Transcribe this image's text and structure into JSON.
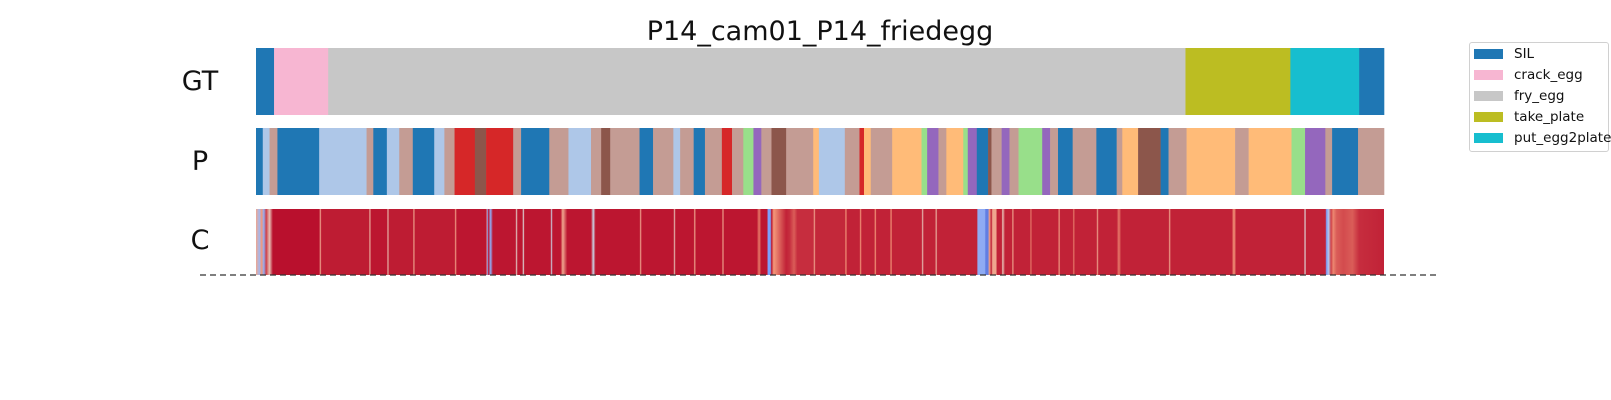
{
  "chart_data": {
    "type": "segmentation",
    "title": "P14_cam01_P14_friedegg",
    "total_frames": 1000,
    "row_labels": [
      "GT",
      "P",
      "C"
    ],
    "legend": {
      "placement": "top-right",
      "entries": [
        {
          "label": "SIL",
          "color": "#1f77b4"
        },
        {
          "label": "crack_egg",
          "color": "#f7b6d2"
        },
        {
          "label": "fry_egg",
          "color": "#c7c7c7"
        },
        {
          "label": "take_plate",
          "color": "#bcbd22"
        },
        {
          "label": "put_egg2plate",
          "color": "#17becf"
        }
      ]
    },
    "gt_segments": [
      {
        "label": "SIL",
        "start": 0,
        "end": 16,
        "color": "#1f77b4"
      },
      {
        "label": "crack_egg",
        "start": 16,
        "end": 64,
        "color": "#f7b6d2"
      },
      {
        "label": "fry_egg",
        "start": 64,
        "end": 824,
        "color": "#c7c7c7"
      },
      {
        "label": "take_plate",
        "start": 824,
        "end": 917,
        "color": "#bcbd22"
      },
      {
        "label": "put_egg2plate",
        "start": 917,
        "end": 978,
        "color": "#17becf"
      },
      {
        "label": "SIL",
        "start": 978,
        "end": 1000,
        "color": "#1f77b4"
      }
    ],
    "pred_segments": [
      {
        "start": 0,
        "end": 6,
        "color": "#1f77b4"
      },
      {
        "start": 6,
        "end": 12,
        "color": "#aec7e8"
      },
      {
        "start": 12,
        "end": 19,
        "color": "#c49c94"
      },
      {
        "start": 19,
        "end": 56,
        "color": "#1f77b4"
      },
      {
        "start": 56,
        "end": 98,
        "color": "#aec7e8"
      },
      {
        "start": 98,
        "end": 104,
        "color": "#c49c94"
      },
      {
        "start": 104,
        "end": 116,
        "color": "#1f77b4"
      },
      {
        "start": 116,
        "end": 127,
        "color": "#aec7e8"
      },
      {
        "start": 127,
        "end": 139,
        "color": "#c49c94"
      },
      {
        "start": 139,
        "end": 158,
        "color": "#1f77b4"
      },
      {
        "start": 158,
        "end": 167,
        "color": "#aec7e8"
      },
      {
        "start": 167,
        "end": 176,
        "color": "#c49c94"
      },
      {
        "start": 176,
        "end": 194,
        "color": "#d62728"
      },
      {
        "start": 194,
        "end": 204,
        "color": "#8c564b"
      },
      {
        "start": 204,
        "end": 228,
        "color": "#d62728"
      },
      {
        "start": 228,
        "end": 235,
        "color": "#c49c94"
      },
      {
        "start": 235,
        "end": 260,
        "color": "#1f77b4"
      },
      {
        "start": 260,
        "end": 277,
        "color": "#c49c94"
      },
      {
        "start": 277,
        "end": 297,
        "color": "#aec7e8"
      },
      {
        "start": 297,
        "end": 306,
        "color": "#c49c94"
      },
      {
        "start": 306,
        "end": 314,
        "color": "#8c564b"
      },
      {
        "start": 314,
        "end": 340,
        "color": "#c49c94"
      },
      {
        "start": 340,
        "end": 352,
        "color": "#1f77b4"
      },
      {
        "start": 352,
        "end": 370,
        "color": "#c49c94"
      },
      {
        "start": 370,
        "end": 376,
        "color": "#aec7e8"
      },
      {
        "start": 376,
        "end": 388,
        "color": "#c49c94"
      },
      {
        "start": 388,
        "end": 398,
        "color": "#1f77b4"
      },
      {
        "start": 398,
        "end": 413,
        "color": "#c49c94"
      },
      {
        "start": 413,
        "end": 422,
        "color": "#d62728"
      },
      {
        "start": 422,
        "end": 432,
        "color": "#c49c94"
      },
      {
        "start": 432,
        "end": 441,
        "color": "#98df8a"
      },
      {
        "start": 441,
        "end": 448,
        "color": "#9467bd"
      },
      {
        "start": 448,
        "end": 457,
        "color": "#c49c94"
      },
      {
        "start": 457,
        "end": 470,
        "color": "#8c564b"
      },
      {
        "start": 470,
        "end": 494,
        "color": "#c49c94"
      },
      {
        "start": 494,
        "end": 499,
        "color": "#ffbb78"
      },
      {
        "start": 499,
        "end": 522,
        "color": "#aec7e8"
      },
      {
        "start": 522,
        "end": 535,
        "color": "#c49c94"
      },
      {
        "start": 535,
        "end": 539,
        "color": "#d62728"
      },
      {
        "start": 539,
        "end": 545,
        "color": "#ffbb78"
      },
      {
        "start": 545,
        "end": 564,
        "color": "#c49c94"
      },
      {
        "start": 564,
        "end": 590,
        "color": "#ffbb78"
      },
      {
        "start": 590,
        "end": 595,
        "color": "#98df8a"
      },
      {
        "start": 595,
        "end": 605,
        "color": "#9467bd"
      },
      {
        "start": 605,
        "end": 612,
        "color": "#c49c94"
      },
      {
        "start": 612,
        "end": 627,
        "color": "#ffbb78"
      },
      {
        "start": 627,
        "end": 631,
        "color": "#98df8a"
      },
      {
        "start": 631,
        "end": 639,
        "color": "#9467bd"
      },
      {
        "start": 639,
        "end": 649,
        "color": "#1f77b4"
      },
      {
        "start": 649,
        "end": 652,
        "color": "#8c564b"
      },
      {
        "start": 652,
        "end": 661,
        "color": "#c49c94"
      },
      {
        "start": 661,
        "end": 668,
        "color": "#9467bd"
      },
      {
        "start": 668,
        "end": 676,
        "color": "#c49c94"
      },
      {
        "start": 676,
        "end": 697,
        "color": "#98df8a"
      },
      {
        "start": 697,
        "end": 704,
        "color": "#9467bd"
      },
      {
        "start": 704,
        "end": 711,
        "color": "#c49c94"
      },
      {
        "start": 711,
        "end": 724,
        "color": "#1f77b4"
      },
      {
        "start": 724,
        "end": 745,
        "color": "#c49c94"
      },
      {
        "start": 745,
        "end": 763,
        "color": "#1f77b4"
      },
      {
        "start": 763,
        "end": 768,
        "color": "#c49c94"
      },
      {
        "start": 768,
        "end": 782,
        "color": "#ffbb78"
      },
      {
        "start": 782,
        "end": 802,
        "color": "#8c564b"
      },
      {
        "start": 802,
        "end": 809,
        "color": "#1f77b4"
      },
      {
        "start": 809,
        "end": 825,
        "color": "#c49c94"
      },
      {
        "start": 825,
        "end": 868,
        "color": "#ffbb78"
      },
      {
        "start": 868,
        "end": 880,
        "color": "#c49c94"
      },
      {
        "start": 880,
        "end": 918,
        "color": "#ffbb78"
      },
      {
        "start": 918,
        "end": 930,
        "color": "#98df8a"
      },
      {
        "start": 930,
        "end": 948,
        "color": "#9467bd"
      },
      {
        "start": 948,
        "end": 954,
        "color": "#c49c94"
      },
      {
        "start": 954,
        "end": 977,
        "color": "#1f77b4"
      },
      {
        "start": 977,
        "end": 1000,
        "color": "#c49c94"
      }
    ],
    "confidence": {
      "colormap": "coolwarm",
      "range": [
        0,
        1
      ],
      "breakpoints": [
        [
          0,
          0.7
        ],
        [
          3,
          0.35
        ],
        [
          5,
          0.75
        ],
        [
          7,
          0.3
        ],
        [
          9,
          0.9
        ],
        [
          12,
          0.6
        ],
        [
          15,
          0.98
        ],
        [
          56,
          0.98
        ],
        [
          57,
          0.7
        ],
        [
          58,
          0.96
        ],
        [
          100,
          0.96
        ],
        [
          101,
          0.65
        ],
        [
          102,
          0.97
        ],
        [
          116,
          0.97
        ],
        [
          117,
          0.62
        ],
        [
          118,
          0.96
        ],
        [
          139,
          0.96
        ],
        [
          140,
          0.7
        ],
        [
          141,
          0.96
        ],
        [
          176,
          0.96
        ],
        [
          177,
          0.72
        ],
        [
          178,
          0.97
        ],
        [
          204,
          0.97
        ],
        [
          205,
          0.5
        ],
        [
          206,
          0.97
        ],
        [
          203,
          0.97
        ],
        [
          205,
          0.3
        ],
        [
          208,
          0.3
        ],
        [
          210,
          0.97
        ],
        [
          230,
          0.97
        ],
        [
          231,
          0.55
        ],
        [
          232,
          0.97
        ],
        [
          236,
          0.97
        ],
        [
          237,
          0.5
        ],
        [
          238,
          0.97
        ],
        [
          261,
          0.97
        ],
        [
          262,
          0.45
        ],
        [
          263,
          0.97
        ],
        [
          270,
          0.97
        ],
        [
          272,
          0.7
        ],
        [
          276,
          0.97
        ],
        [
          297,
          0.97
        ],
        [
          299,
          0.45
        ],
        [
          301,
          0.97
        ],
        [
          340,
          0.97
        ],
        [
          341,
          0.7
        ],
        [
          342,
          0.97
        ],
        [
          370,
          0.97
        ],
        [
          371,
          0.6
        ],
        [
          372,
          0.97
        ],
        [
          388,
          0.97
        ],
        [
          389,
          0.7
        ],
        [
          390,
          0.97
        ],
        [
          413,
          0.97
        ],
        [
          414,
          0.7
        ],
        [
          415,
          0.97
        ],
        [
          444,
          0.97
        ],
        [
          446,
          0.8
        ],
        [
          448,
          0.97
        ],
        [
          453,
          0.97
        ],
        [
          454,
          0.25
        ],
        [
          456,
          0.25
        ],
        [
          457,
          0.97
        ],
        [
          459,
          0.75
        ],
        [
          470,
          0.95
        ],
        [
          473,
          0.93
        ],
        [
          477,
          0.85
        ],
        [
          480,
          0.93
        ],
        [
          494,
          0.93
        ],
        [
          495,
          0.7
        ],
        [
          496,
          0.94
        ],
        [
          522,
          0.94
        ],
        [
          523,
          0.75
        ],
        [
          524,
          0.95
        ],
        [
          535,
          0.95
        ],
        [
          536,
          0.75
        ],
        [
          537,
          0.95
        ],
        [
          548,
          0.95
        ],
        [
          549,
          0.75
        ],
        [
          550,
          0.95
        ],
        [
          562,
          0.95
        ],
        [
          563,
          0.75
        ],
        [
          564,
          0.95
        ],
        [
          590,
          0.95
        ],
        [
          591,
          0.6
        ],
        [
          592,
          0.95
        ],
        [
          602,
          0.95
        ],
        [
          603,
          0.65
        ],
        [
          604,
          0.95
        ],
        [
          639,
          0.95
        ],
        [
          640,
          0.3
        ],
        [
          646,
          0.3
        ],
        [
          647,
          0.15
        ],
        [
          649,
          0.15
        ],
        [
          650,
          0.7
        ],
        [
          652,
          0.95
        ],
        [
          653,
          0.7
        ],
        [
          656,
          0.7
        ],
        [
          657,
          0.95
        ],
        [
          661,
          0.95
        ],
        [
          662,
          0.6
        ],
        [
          664,
          0.95
        ],
        [
          670,
          0.95
        ],
        [
          671,
          0.7
        ],
        [
          672,
          0.95
        ],
        [
          686,
          0.95
        ],
        [
          687,
          0.8
        ],
        [
          688,
          0.95
        ],
        [
          711,
          0.95
        ],
        [
          712,
          0.72
        ],
        [
          713,
          0.95
        ],
        [
          724,
          0.95
        ],
        [
          725,
          0.8
        ],
        [
          726,
          0.95
        ],
        [
          745,
          0.95
        ],
        [
          746,
          0.7
        ],
        [
          747,
          0.95
        ],
        [
          763,
          0.95
        ],
        [
          765,
          0.8
        ],
        [
          767,
          0.95
        ],
        [
          809,
          0.95
        ],
        [
          810,
          0.7
        ],
        [
          811,
          0.95
        ],
        [
          865,
          0.95
        ],
        [
          867,
          0.75
        ],
        [
          869,
          0.95
        ],
        [
          929,
          0.95
        ],
        [
          930,
          0.5
        ],
        [
          931,
          0.95
        ],
        [
          948,
          0.95
        ],
        [
          949,
          0.25
        ],
        [
          951,
          0.4
        ],
        [
          953,
          0.9
        ],
        [
          955,
          0.78
        ],
        [
          958,
          0.85
        ],
        [
          964,
          0.88
        ],
        [
          972,
          0.85
        ],
        [
          978,
          0.93
        ],
        [
          1000,
          0.95
        ]
      ]
    }
  }
}
